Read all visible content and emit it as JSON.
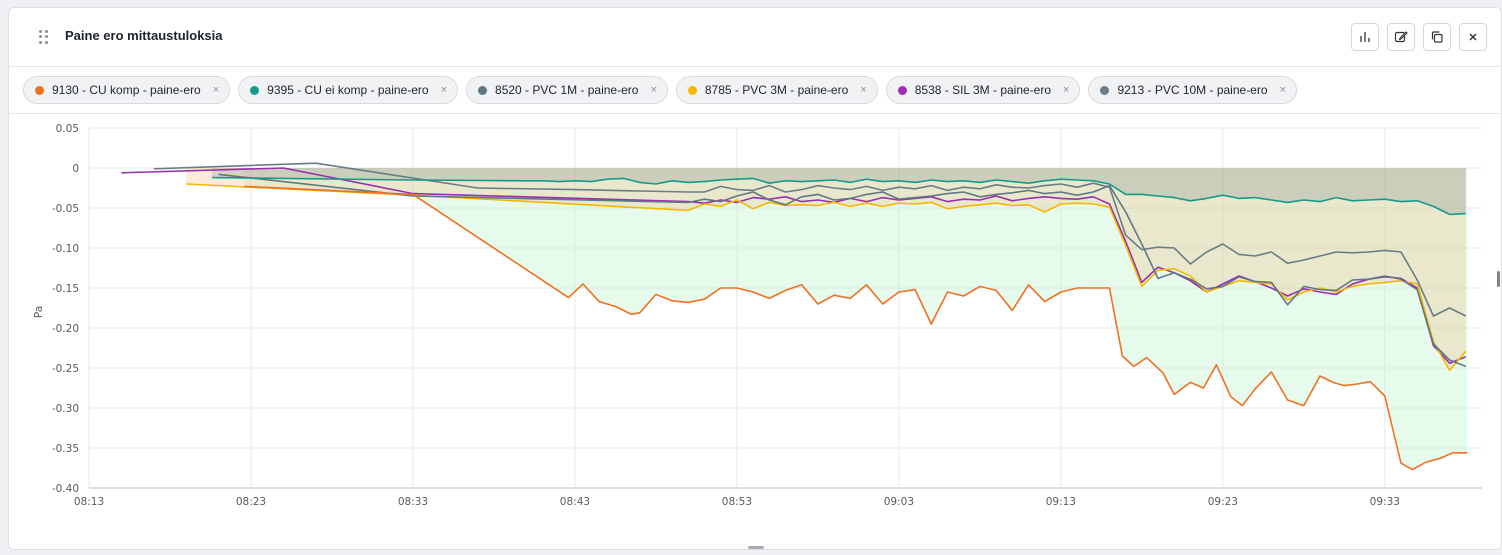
{
  "widget": {
    "title": "Paine ero mittaustuloksia",
    "tool_icons": [
      "bar-chart-icon",
      "edit-icon",
      "copy-icon",
      "close-icon"
    ]
  },
  "legend": [
    {
      "label": "9130 - CU komp - paine-ero",
      "color": "#f07021"
    },
    {
      "label": "9395 - CU ei komp - paine-ero",
      "color": "#159a8a"
    },
    {
      "label": "8520 - PVC 1M - paine-ero",
      "color": "#5f7883"
    },
    {
      "label": "8785 - PVC 3M - paine-ero",
      "color": "#f5b800"
    },
    {
      "label": "8538 - SIL 3M - paine-ero",
      "color": "#9b2fae"
    },
    {
      "label": "9213 - PVC 10M - paine-ero",
      "color": "#6c7c86"
    }
  ],
  "chip_close": "×",
  "chart_data": {
    "type": "area",
    "title": "Paine ero mittaustuloksia",
    "ylabel": "Pa",
    "xlabel": "",
    "ylim": [
      -0.4,
      0.05
    ],
    "xlim": [
      0,
      86
    ],
    "yticks": [
      0.05,
      0,
      -0.05,
      -0.1,
      -0.15,
      -0.2,
      -0.25,
      -0.3,
      -0.35,
      -0.4
    ],
    "ytick_labels": [
      "0.05",
      "0",
      "-0.05",
      "-0.10",
      "-0.15",
      "-0.20",
      "-0.25",
      "-0.30",
      "-0.35",
      "-0.40"
    ],
    "xticks": [
      0,
      10,
      20,
      30,
      40,
      50,
      60,
      70,
      80
    ],
    "xtick_labels": [
      "08:13",
      "08:23",
      "08:33",
      "08:43",
      "08:53",
      "09:03",
      "09:13",
      "09:23",
      "09:33"
    ],
    "grid": true,
    "series": [
      {
        "name": "9130 - CU komp - paine-ero",
        "color": "#f07021",
        "x": [
          9.6,
          20,
          29.6,
          30.5,
          31.5,
          32.5,
          33.5,
          34,
          35,
          36,
          37,
          38,
          39,
          40,
          41,
          42,
          43,
          44,
          45,
          46,
          47,
          48,
          49,
          50,
          51,
          52,
          53,
          54,
          55,
          56,
          57,
          58,
          59,
          60,
          61,
          62,
          63,
          63.8,
          64.5,
          65.3,
          66.3,
          67,
          68,
          68.8,
          69.6,
          70.5,
          71.2,
          72,
          73,
          74,
          75,
          76,
          76.8,
          77.5,
          78.3,
          79.1,
          80,
          81,
          81.7,
          82.5,
          83.4,
          84.2,
          85.1
        ],
        "values": [
          -0.023,
          -0.033,
          -0.162,
          -0.145,
          -0.167,
          -0.173,
          -0.183,
          -0.181,
          -0.158,
          -0.166,
          -0.168,
          -0.164,
          -0.15,
          -0.15,
          -0.155,
          -0.163,
          -0.153,
          -0.146,
          -0.17,
          -0.159,
          -0.163,
          -0.146,
          -0.17,
          -0.155,
          -0.152,
          -0.195,
          -0.155,
          -0.16,
          -0.148,
          -0.153,
          -0.178,
          -0.146,
          -0.167,
          -0.155,
          -0.15,
          -0.15,
          -0.15,
          -0.235,
          -0.248,
          -0.237,
          -0.256,
          -0.283,
          -0.268,
          -0.275,
          -0.246,
          -0.286,
          -0.297,
          -0.276,
          -0.255,
          -0.29,
          -0.297,
          -0.26,
          -0.268,
          -0.272,
          -0.27,
          -0.267,
          -0.285,
          -0.369,
          -0.377,
          -0.368,
          -0.363,
          -0.356,
          -0.356
        ]
      },
      {
        "name": "9395 - CU ei komp - paine-ero",
        "color": "#159a8a",
        "x": [
          7.6,
          20,
          27,
          28,
          29,
          30,
          31,
          32,
          33,
          34,
          35,
          36,
          37,
          38,
          39,
          40,
          41,
          42,
          43,
          44,
          45,
          46,
          47,
          48,
          49,
          50,
          51,
          52,
          53,
          54,
          55,
          56,
          57,
          58,
          59,
          60,
          61,
          62,
          63,
          64,
          65,
          66,
          67,
          68,
          69,
          70,
          71,
          72,
          73,
          74,
          75,
          76,
          77,
          78,
          79,
          80,
          81,
          82,
          83,
          84,
          85
        ],
        "values": [
          -0.012,
          -0.015,
          -0.016,
          -0.016,
          -0.017,
          -0.016,
          -0.017,
          -0.014,
          -0.013,
          -0.018,
          -0.02,
          -0.016,
          -0.018,
          -0.017,
          -0.015,
          -0.014,
          -0.013,
          -0.019,
          -0.016,
          -0.017,
          -0.016,
          -0.015,
          -0.018,
          -0.014,
          -0.017,
          -0.016,
          -0.018,
          -0.015,
          -0.017,
          -0.016,
          -0.018,
          -0.015,
          -0.017,
          -0.019,
          -0.016,
          -0.014,
          -0.015,
          -0.016,
          -0.02,
          -0.033,
          -0.033,
          -0.035,
          -0.037,
          -0.041,
          -0.038,
          -0.034,
          -0.038,
          -0.037,
          -0.04,
          -0.043,
          -0.04,
          -0.042,
          -0.037,
          -0.041,
          -0.04,
          -0.039,
          -0.042,
          -0.041,
          -0.048,
          -0.058,
          -0.057
        ]
      },
      {
        "name": "8520 - PVC 1M - paine-ero",
        "color": "#5f7883",
        "x": [
          8,
          20,
          37,
          38,
          39,
          40,
          41,
          42,
          43,
          44,
          45,
          46,
          47,
          48,
          49,
          50,
          51,
          52,
          53,
          54,
          55,
          56,
          57,
          58,
          59,
          60,
          61,
          62,
          63,
          64,
          65,
          66,
          67,
          68,
          69,
          70,
          71,
          72,
          73,
          74,
          75,
          76,
          77,
          78,
          79,
          80,
          81,
          82,
          83,
          84,
          85
        ],
        "values": [
          -0.008,
          -0.035,
          -0.043,
          -0.039,
          -0.042,
          -0.035,
          -0.03,
          -0.04,
          -0.046,
          -0.036,
          -0.033,
          -0.04,
          -0.038,
          -0.033,
          -0.03,
          -0.039,
          -0.037,
          -0.035,
          -0.032,
          -0.03,
          -0.036,
          -0.033,
          -0.031,
          -0.028,
          -0.032,
          -0.03,
          -0.034,
          -0.03,
          -0.022,
          -0.055,
          -0.095,
          -0.138,
          -0.131,
          -0.139,
          -0.151,
          -0.148,
          -0.136,
          -0.142,
          -0.143,
          -0.171,
          -0.148,
          -0.152,
          -0.153,
          -0.14,
          -0.139,
          -0.135,
          -0.139,
          -0.152,
          -0.22,
          -0.24,
          -0.248
        ]
      },
      {
        "name": "8785 - PVC 3M - paine-ero",
        "color": "#f5b800",
        "x": [
          6,
          20,
          37,
          38,
          39,
          40,
          41,
          42,
          43,
          44,
          45,
          46,
          47,
          48,
          49,
          50,
          51,
          52,
          53,
          54,
          55,
          56,
          57,
          58,
          59,
          60,
          61,
          62,
          63,
          64,
          65,
          66,
          67,
          68,
          69,
          70,
          71,
          72,
          73,
          74,
          75,
          76,
          77,
          78,
          79,
          80,
          81,
          82,
          83,
          84,
          85
        ],
        "values": [
          -0.02,
          -0.034,
          -0.053,
          -0.045,
          -0.048,
          -0.04,
          -0.051,
          -0.043,
          -0.047,
          -0.046,
          -0.047,
          -0.043,
          -0.048,
          -0.044,
          -0.048,
          -0.044,
          -0.045,
          -0.043,
          -0.051,
          -0.048,
          -0.046,
          -0.044,
          -0.047,
          -0.046,
          -0.055,
          -0.045,
          -0.044,
          -0.045,
          -0.049,
          -0.097,
          -0.148,
          -0.128,
          -0.126,
          -0.135,
          -0.155,
          -0.148,
          -0.141,
          -0.143,
          -0.145,
          -0.165,
          -0.155,
          -0.15,
          -0.155,
          -0.148,
          -0.145,
          -0.143,
          -0.141,
          -0.145,
          -0.217,
          -0.253,
          -0.229
        ]
      },
      {
        "name": "8538 - SIL 3M - paine-ero",
        "color": "#9b2fae",
        "x": [
          2,
          12,
          20,
          37,
          38,
          39,
          40,
          41,
          42,
          43,
          44,
          45,
          46,
          47,
          48,
          49,
          50,
          51,
          52,
          53,
          54,
          55,
          56,
          57,
          58,
          59,
          60,
          61,
          62,
          63,
          64,
          65,
          66,
          67,
          68,
          69,
          70,
          71,
          72,
          73,
          74,
          75,
          76,
          77,
          78,
          79,
          80,
          81,
          82,
          83,
          84,
          85
        ],
        "values": [
          -0.006,
          0.0,
          -0.032,
          -0.042,
          -0.044,
          -0.04,
          -0.043,
          -0.037,
          -0.039,
          -0.036,
          -0.042,
          -0.04,
          -0.043,
          -0.038,
          -0.042,
          -0.037,
          -0.04,
          -0.038,
          -0.036,
          -0.042,
          -0.039,
          -0.04,
          -0.035,
          -0.041,
          -0.038,
          -0.036,
          -0.038,
          -0.039,
          -0.036,
          -0.045,
          -0.092,
          -0.143,
          -0.124,
          -0.131,
          -0.141,
          -0.155,
          -0.145,
          -0.135,
          -0.142,
          -0.15,
          -0.16,
          -0.151,
          -0.155,
          -0.158,
          -0.145,
          -0.139,
          -0.136,
          -0.138,
          -0.15,
          -0.222,
          -0.244,
          -0.236
        ]
      },
      {
        "name": "9213 - PVC 10M - paine-ero",
        "color": "#6c7c86",
        "x": [
          4,
          14,
          24,
          30,
          37,
          38,
          39,
          40,
          41,
          42,
          43,
          44,
          45,
          46,
          47,
          48,
          49,
          50,
          51,
          52,
          53,
          54,
          55,
          56,
          57,
          58,
          59,
          60,
          61,
          62,
          63,
          64,
          65,
          66,
          67,
          68,
          69,
          70,
          71,
          72,
          73,
          74,
          75,
          76,
          77,
          78,
          79,
          80,
          81,
          82,
          83,
          84,
          85
        ],
        "values": [
          -0.001,
          0.006,
          -0.025,
          -0.027,
          -0.03,
          -0.03,
          -0.023,
          -0.027,
          -0.028,
          -0.022,
          -0.03,
          -0.027,
          -0.022,
          -0.025,
          -0.027,
          -0.023,
          -0.028,
          -0.024,
          -0.026,
          -0.022,
          -0.028,
          -0.024,
          -0.026,
          -0.021,
          -0.024,
          -0.025,
          -0.022,
          -0.02,
          -0.024,
          -0.019,
          -0.024,
          -0.084,
          -0.102,
          -0.099,
          -0.1,
          -0.12,
          -0.105,
          -0.095,
          -0.108,
          -0.11,
          -0.105,
          -0.119,
          -0.115,
          -0.11,
          -0.105,
          -0.106,
          -0.105,
          -0.103,
          -0.105,
          -0.14,
          -0.185,
          -0.175,
          -0.185
        ]
      }
    ],
    "fills": [
      {
        "series": "9130 - CU komp - paine-ero",
        "color": "#b9f3c9",
        "opacity": 0.35
      },
      {
        "series": "8785 - PVC 3M - paine-ero",
        "color": "#f0b070",
        "opacity": 0.25
      },
      {
        "series": "9395 - CU ei komp - paine-ero",
        "color": "#7a8c8a",
        "opacity": 0.28
      }
    ]
  }
}
